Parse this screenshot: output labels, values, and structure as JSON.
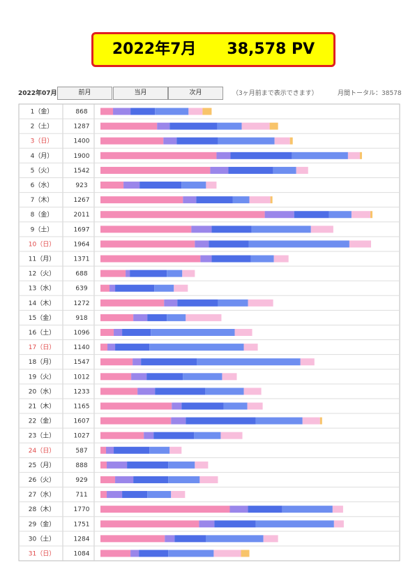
{
  "banner": "2022年7月　　38,578 PV",
  "header": {
    "month": "2022年07月",
    "buttons": [
      "前月",
      "当月",
      "次月"
    ],
    "note": "（3ヶ月前まで表示できます）",
    "total": "月間トータル：38578"
  },
  "segment_colors": [
    "#f48cb6",
    "#9a86ea",
    "#4d6de6",
    "#6e8ef0",
    "#f8bedc",
    "#f8c46a"
  ],
  "rows": [
    {
      "day": "1（金）",
      "pv": 868,
      "color": "#333333",
      "segments": [
        90,
        125,
        175,
        240,
        100,
        65
      ]
    },
    {
      "day": "2（土）",
      "pv": 1287,
      "color": "#333333",
      "segments": [
        405,
        90,
        340,
        175,
        200,
        60
      ]
    },
    {
      "day": "3（日）",
      "pv": 1400,
      "color": "#e04848",
      "segments": [
        450,
        95,
        295,
        405,
        110,
        20
      ]
    },
    {
      "day": "4（月）",
      "pv": 1900,
      "color": "#333333",
      "segments": [
        830,
        100,
        440,
        400,
        85,
        15
      ]
    },
    {
      "day": "5（火）",
      "pv": 1542,
      "color": "#333333",
      "segments": [
        785,
        130,
        320,
        165,
        85,
        0
      ]
    },
    {
      "day": "6（水）",
      "pv": 923,
      "color": "#333333",
      "segments": [
        165,
        115,
        300,
        175,
        75,
        0
      ]
    },
    {
      "day": "7（木）",
      "pv": 1267,
      "color": "#333333",
      "segments": [
        590,
        95,
        260,
        120,
        150,
        15
      ]
    },
    {
      "day": "8（金）",
      "pv": 2011,
      "color": "#333333",
      "segments": [
        1175,
        210,
        250,
        160,
        135,
        15
      ]
    },
    {
      "day": "9（土）",
      "pv": 1697,
      "color": "#333333",
      "segments": [
        650,
        145,
        285,
        425,
        160,
        0
      ]
    },
    {
      "day": "10（日）",
      "pv": 1964,
      "color": "#e04848",
      "segments": [
        675,
        100,
        285,
        720,
        155,
        0
      ]
    },
    {
      "day": "11（月）",
      "pv": 1371,
      "color": "#333333",
      "segments": [
        715,
        80,
        280,
        165,
        105,
        0
      ]
    },
    {
      "day": "12（火）",
      "pv": 688,
      "color": "#333333",
      "segments": [
        180,
        30,
        265,
        110,
        90,
        0
      ]
    },
    {
      "day": "13（水）",
      "pv": 639,
      "color": "#333333",
      "segments": [
        65,
        40,
        280,
        140,
        100,
        0
      ]
    },
    {
      "day": "14（木）",
      "pv": 1272,
      "color": "#333333",
      "segments": [
        455,
        95,
        290,
        215,
        180,
        0
      ]
    },
    {
      "day": "15（金）",
      "pv": 918,
      "color": "#333333",
      "segments": [
        235,
        100,
        140,
        135,
        255,
        0
      ]
    },
    {
      "day": "16（土）",
      "pv": 1096,
      "color": "#333333",
      "segments": [
        95,
        60,
        205,
        600,
        125,
        0
      ]
    },
    {
      "day": "17（日）",
      "pv": 1140,
      "color": "#e04848",
      "segments": [
        50,
        55,
        245,
        675,
        100,
        0
      ]
    },
    {
      "day": "18（月）",
      "pv": 1547,
      "color": "#333333",
      "segments": [
        230,
        60,
        400,
        740,
        100,
        0
      ]
    },
    {
      "day": "19（火）",
      "pv": 1012,
      "color": "#333333",
      "segments": [
        220,
        110,
        260,
        280,
        105,
        0
      ]
    },
    {
      "day": "20（水）",
      "pv": 1233,
      "color": "#333333",
      "segments": [
        265,
        125,
        360,
        275,
        125,
        0
      ]
    },
    {
      "day": "21（木）",
      "pv": 1165,
      "color": "#333333",
      "segments": [
        510,
        70,
        300,
        170,
        110,
        0
      ]
    },
    {
      "day": "22（金）",
      "pv": 1607,
      "color": "#333333",
      "segments": [
        505,
        105,
        500,
        335,
        125,
        15
      ]
    },
    {
      "day": "23（土）",
      "pv": 1027,
      "color": "#333333",
      "segments": [
        310,
        70,
        290,
        190,
        155,
        0
      ]
    },
    {
      "day": "24（日）",
      "pv": 587,
      "color": "#e04848",
      "segments": [
        40,
        55,
        255,
        145,
        85,
        0
      ]
    },
    {
      "day": "25（月）",
      "pv": 888,
      "color": "#333333",
      "segments": [
        45,
        145,
        295,
        190,
        95,
        0
      ]
    },
    {
      "day": "26（火）",
      "pv": 929,
      "color": "#333333",
      "segments": [
        105,
        130,
        250,
        225,
        130,
        0
      ]
    },
    {
      "day": "27（水）",
      "pv": 711,
      "color": "#333333",
      "segments": [
        45,
        110,
        180,
        170,
        100,
        0
      ]
    },
    {
      "day": "28（木）",
      "pv": 1770,
      "color": "#333333",
      "segments": [
        925,
        130,
        245,
        360,
        75,
        0
      ]
    },
    {
      "day": "29（金）",
      "pv": 1751,
      "color": "#333333",
      "segments": [
        705,
        110,
        295,
        560,
        70,
        0
      ]
    },
    {
      "day": "30（土）",
      "pv": 1284,
      "color": "#333333",
      "segments": [
        460,
        70,
        225,
        410,
        105,
        0
      ]
    },
    {
      "day": "31（日）",
      "pv": 1084,
      "color": "#e04848",
      "segments": [
        215,
        60,
        210,
        325,
        195,
        60
      ]
    }
  ]
}
